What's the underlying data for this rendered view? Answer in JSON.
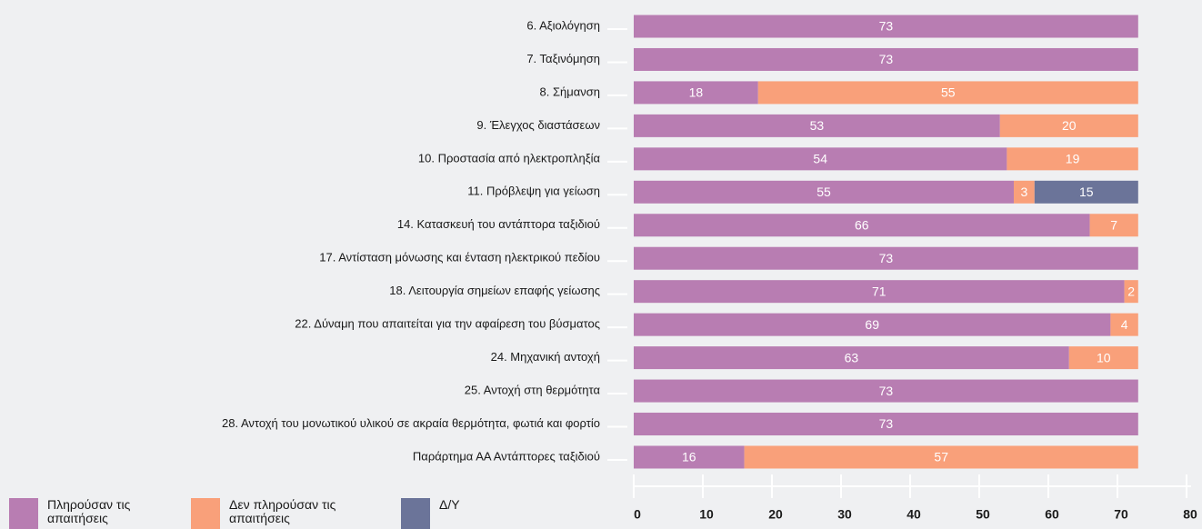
{
  "chart_data": {
    "type": "stacked-bar-horizontal",
    "categories": [
      "6. Αξιολόγηση",
      "7. Ταξινόμηση",
      "8. Σήμανση",
      "9. Έλεγχος διαστάσεων",
      "10. Προστασία από ηλεκτροπληξία",
      "11. Πρόβλεψη για γείωση",
      "14. Κατασκευή του αντάπτορα ταξιδιού",
      "17. Αντίσταση μόνωσης και ένταση ηλεκτρικού πεδίου",
      "18. Λειτουργία σημείων επαφής γείωσης",
      "22. Δύναμη που απαιτείται για την αφαίρεση του βύσματος",
      "24. Μηχανική αντοχή",
      "25. Αντοχή στη θερμότητα",
      "28. Αντοχή του μονωτικού υλικού σε ακραία θερμότητα, φωτιά και φορτίο",
      "Παράρτημα ΑΑ Αντάπτορες ταξιδιού"
    ],
    "series": [
      {
        "name": "Πληρούσαν τις απαιτήσεις",
        "color": "#b87db2",
        "values": [
          73,
          73,
          18,
          53,
          54,
          55,
          66,
          73,
          71,
          69,
          63,
          73,
          73,
          16
        ]
      },
      {
        "name": "Δεν πληρούσαν τις απαιτήσεις",
        "color": "#f9a07a",
        "values": [
          null,
          null,
          55,
          20,
          19,
          3,
          7,
          null,
          2,
          4,
          10,
          null,
          null,
          57
        ]
      },
      {
        "name": "Δ/Υ",
        "color": "#6b7499",
        "values": [
          null,
          null,
          null,
          null,
          null,
          15,
          null,
          null,
          null,
          null,
          null,
          null,
          null,
          null
        ]
      }
    ],
    "xlim": [
      0,
      80
    ],
    "xticks": [
      0,
      10,
      20,
      30,
      40,
      50,
      60,
      70,
      80
    ]
  }
}
